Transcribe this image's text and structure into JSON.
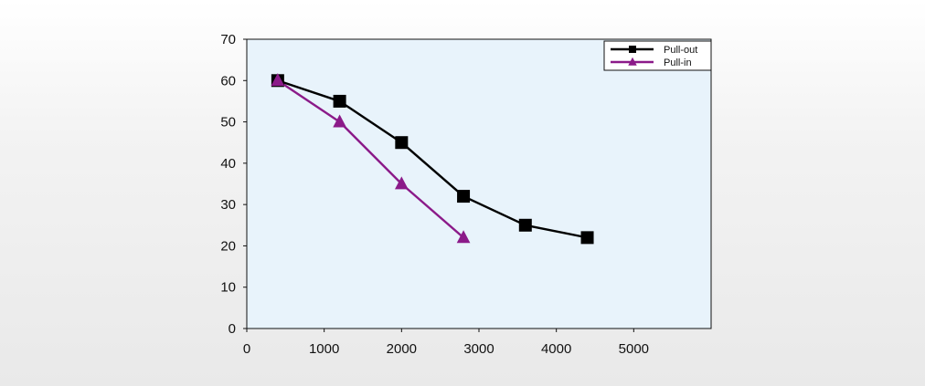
{
  "chart_data": {
    "type": "line",
    "title": "",
    "xlabel": "",
    "ylabel": "",
    "xlim": [
      0,
      6000
    ],
    "ylim": [
      0,
      70
    ],
    "x_ticks": [
      0,
      1000,
      2000,
      3000,
      4000,
      5000
    ],
    "y_ticks": [
      0,
      10,
      20,
      30,
      40,
      50,
      60,
      70
    ],
    "grid": false,
    "legend_position": "top-right",
    "background_color": "#e8f3fb",
    "series": [
      {
        "name": "Pull-out",
        "color": "#000000",
        "marker": "square",
        "points": [
          {
            "x": 400,
            "y": 60
          },
          {
            "x": 1200,
            "y": 55
          },
          {
            "x": 2000,
            "y": 45
          },
          {
            "x": 2800,
            "y": 32
          },
          {
            "x": 3600,
            "y": 25
          },
          {
            "x": 4400,
            "y": 22
          }
        ]
      },
      {
        "name": "Pull-in",
        "color": "#8b1a89",
        "marker": "triangle",
        "points": [
          {
            "x": 400,
            "y": 60
          },
          {
            "x": 1200,
            "y": 50
          },
          {
            "x": 2000,
            "y": 35
          },
          {
            "x": 2800,
            "y": 22
          }
        ]
      }
    ]
  }
}
